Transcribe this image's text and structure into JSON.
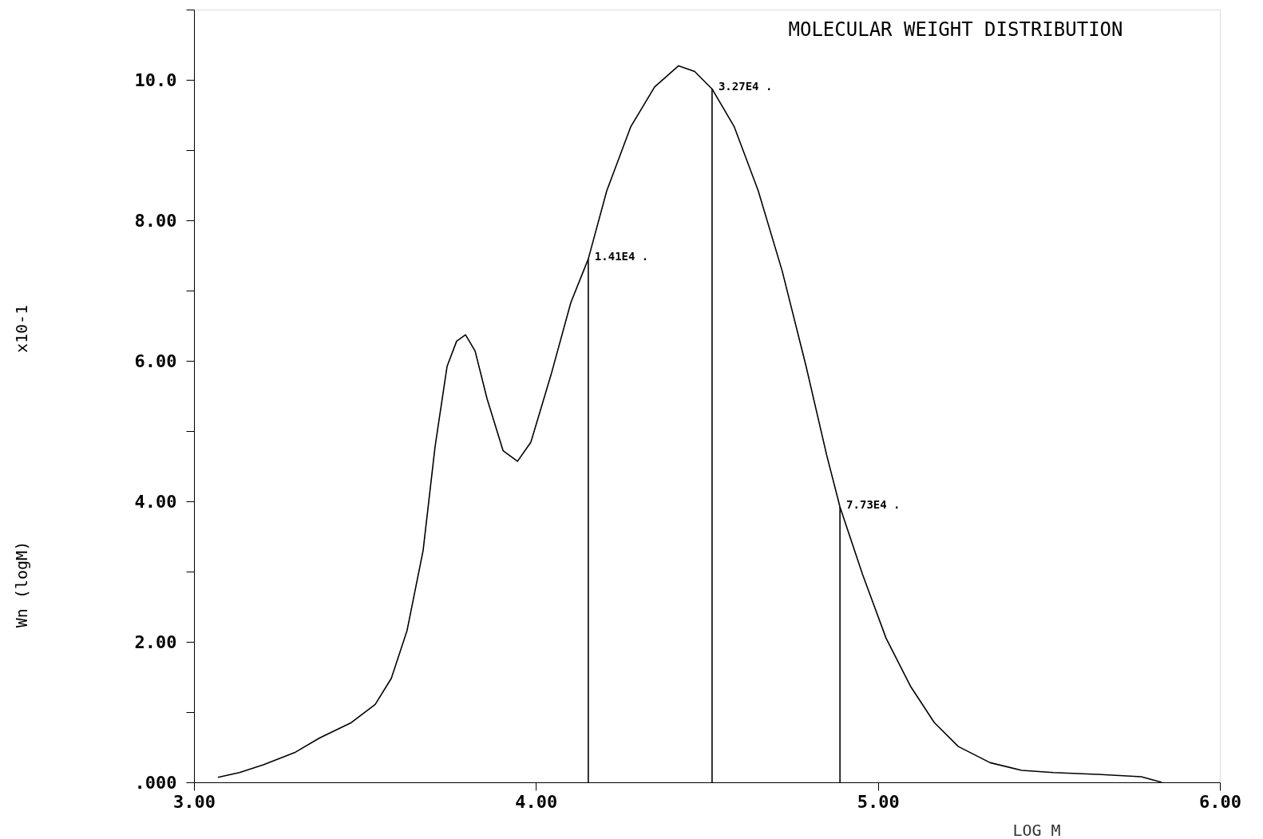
{
  "chart_data": {
    "type": "line",
    "title": "MOLECULAR WEIGHT DISTRIBUTION",
    "xlabel": "LOG M",
    "x": [
      3.07,
      3.133,
      3.203,
      3.297,
      3.367,
      3.46,
      3.53,
      3.577,
      3.623,
      3.67,
      3.705,
      3.74,
      3.768,
      3.794,
      3.822,
      3.857,
      3.904,
      3.946,
      3.985,
      4.044,
      4.102,
      4.153,
      4.207,
      4.277,
      4.347,
      4.417,
      4.464,
      4.515,
      4.58,
      4.65,
      4.72,
      4.79,
      4.85,
      4.889,
      4.955,
      5.024,
      5.095,
      5.165,
      5.235,
      5.328,
      5.42,
      5.513,
      5.653,
      5.77,
      5.83
    ],
    "series": [
      {
        "color": "#000000",
        "values": [
          0.07,
          0.14,
          0.25,
          0.43,
          0.63,
          0.85,
          1.11,
          1.48,
          2.16,
          3.3,
          4.78,
          5.92,
          6.28,
          6.37,
          6.14,
          5.46,
          4.72,
          4.57,
          4.84,
          5.8,
          6.83,
          7.45,
          8.42,
          9.33,
          9.9,
          10.2,
          10.12,
          9.87,
          9.33,
          8.42,
          7.28,
          5.92,
          4.66,
          3.92,
          2.96,
          2.05,
          1.37,
          0.85,
          0.51,
          0.28,
          0.17,
          0.14,
          0.11,
          0.08,
          0.0
        ]
      }
    ],
    "ref_lines": [
      {
        "axis": "x",
        "value": 4.153,
        "label": "1.41E4 ."
      },
      {
        "axis": "x",
        "value": 4.515,
        "label": "3.27E4 ."
      },
      {
        "axis": "x",
        "value": 4.889,
        "label": "7.73E4 ."
      }
    ],
    "annotations": [
      "x10-1",
      "Wn (logM)"
    ],
    "xlim": [
      3,
      6
    ],
    "ylim": [
      0,
      11
    ],
    "xticks": [
      {
        "value": 3,
        "label": "3.00"
      },
      {
        "value": 4,
        "label": "4.00"
      },
      {
        "value": 5,
        "label": "5.00"
      },
      {
        "value": 6,
        "label": "6.00"
      }
    ],
    "yticks": [
      {
        "value": 0,
        "label": ".000"
      },
      {
        "value": 1,
        "label": null
      },
      {
        "value": 2,
        "label": "2.00"
      },
      {
        "value": 3,
        "label": null
      },
      {
        "value": 4,
        "label": "4.00"
      },
      {
        "value": 5,
        "label": null
      },
      {
        "value": 6,
        "label": "6.00"
      },
      {
        "value": 7,
        "label": null
      },
      {
        "value": 8,
        "label": "8.00"
      },
      {
        "value": 9,
        "label": null
      },
      {
        "value": 10,
        "label": "10.0"
      },
      {
        "value": 11,
        "label": null
      }
    ],
    "grid": false,
    "marker": "none",
    "line_style": "solid"
  }
}
